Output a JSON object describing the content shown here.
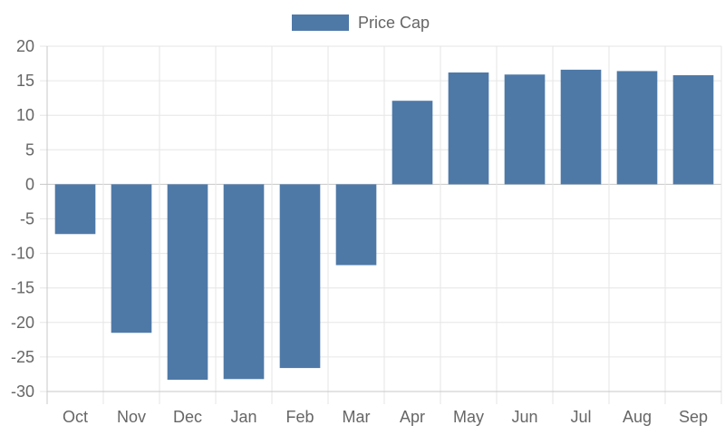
{
  "chart_data": {
    "type": "bar",
    "categories": [
      "Oct",
      "Nov",
      "Dec",
      "Jan",
      "Feb",
      "Mar",
      "Apr",
      "May",
      "Jun",
      "Jul",
      "Aug",
      "Sep"
    ],
    "series": [
      {
        "name": "Price Cap",
        "color": "#4e79a7",
        "values": [
          -7.2,
          -21.5,
          -28.3,
          -28.2,
          -26.6,
          -11.7,
          12.1,
          16.2,
          15.9,
          16.6,
          16.4,
          15.8
        ]
      }
    ],
    "ylim": [
      -30,
      20
    ],
    "yticks": [
      "20",
      "15",
      "10",
      "5",
      "0",
      "-5",
      "-10",
      "-15",
      "-20",
      "-25",
      "-30"
    ],
    "grid": true,
    "legend_position": "top-center"
  }
}
